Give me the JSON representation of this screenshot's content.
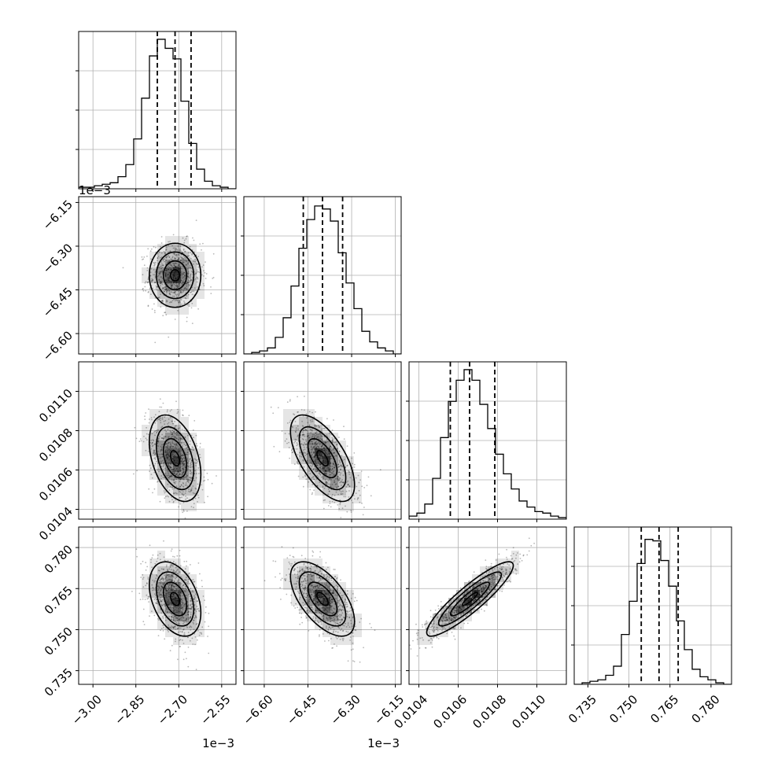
{
  "chart_data": {
    "type": "corner",
    "parameters": [
      {
        "index": 0,
        "range": [
          -3.05,
          -2.5
        ],
        "ticks": [
          -3.0,
          -2.85,
          -2.7,
          -2.55
        ],
        "tick_labels": [
          "−3.00",
          "−2.85",
          "−2.70",
          "−2.55"
        ],
        "offset_text": "1e−3",
        "quantiles": [
          -2.775,
          -2.713,
          -2.657
        ]
      },
      {
        "index": 1,
        "range": [
          -6.67,
          -6.13
        ],
        "ticks": [
          -6.6,
          -6.45,
          -6.3,
          -6.15
        ],
        "tick_labels": [
          "−6.60",
          "−6.45",
          "−6.30",
          "−6.15"
        ],
        "offset_text": "1e−3",
        "quantiles": [
          -6.466,
          -6.4,
          -6.331
        ]
      },
      {
        "index": 2,
        "range": [
          0.01035,
          0.01115
        ],
        "ticks": [
          0.0104,
          0.0106,
          0.0108,
          0.011
        ],
        "tick_labels": [
          "0.0104",
          "0.0106",
          "0.0108",
          "0.0110"
        ],
        "offset_text": "",
        "quantiles": [
          0.01056,
          0.010658,
          0.010786
        ]
      },
      {
        "index": 3,
        "range": [
          0.73,
          0.7875
        ],
        "ticks": [
          0.735,
          0.75,
          0.765,
          0.78
        ],
        "tick_labels": [
          "0.735",
          "0.750",
          "0.765",
          "0.780"
        ],
        "offset_text": "",
        "quantiles": [
          0.7545,
          0.761,
          0.768
        ]
      }
    ],
    "histograms": [
      [
        0.01,
        0.01,
        0.02,
        0.03,
        0.04,
        0.08,
        0.16,
        0.33,
        0.6,
        0.88,
        0.99,
        0.93,
        0.86,
        0.58,
        0.3,
        0.13,
        0.05,
        0.02,
        0.01,
        0.0
      ],
      [
        0.0,
        0.01,
        0.02,
        0.04,
        0.11,
        0.24,
        0.45,
        0.7,
        0.89,
        0.98,
        0.96,
        0.88,
        0.67,
        0.47,
        0.3,
        0.15,
        0.08,
        0.04,
        0.02,
        0.0
      ],
      [
        0.02,
        0.04,
        0.1,
        0.27,
        0.54,
        0.78,
        0.92,
        0.99,
        0.92,
        0.76,
        0.6,
        0.43,
        0.3,
        0.2,
        0.12,
        0.08,
        0.05,
        0.04,
        0.02,
        0.01
      ],
      [
        0.0,
        0.01,
        0.02,
        0.03,
        0.06,
        0.12,
        0.33,
        0.55,
        0.8,
        0.96,
        0.95,
        0.82,
        0.65,
        0.42,
        0.23,
        0.1,
        0.05,
        0.03,
        0.01,
        0.0
      ]
    ],
    "pairs": [
      {
        "i": 1,
        "j": 0,
        "mean": [
          -2.713,
          -6.4
        ],
        "sd": [
          0.045,
          0.055
        ],
        "rho": 0.0
      },
      {
        "i": 2,
        "j": 0,
        "mean": [
          -2.713,
          0.01066
        ],
        "sd": [
          0.045,
          0.00011
        ],
        "rho": -0.38
      },
      {
        "i": 2,
        "j": 1,
        "mean": [
          -6.4,
          0.01066
        ],
        "sd": [
          0.055,
          0.00011
        ],
        "rho": -0.62
      },
      {
        "i": 3,
        "j": 0,
        "mean": [
          -2.713,
          0.7612
        ],
        "sd": [
          0.045,
          0.0068
        ],
        "rho": -0.38
      },
      {
        "i": 3,
        "j": 1,
        "mean": [
          -6.4,
          0.7612
        ],
        "sd": [
          0.055,
          0.0068
        ],
        "rho": -0.6
      },
      {
        "i": 3,
        "j": 2,
        "mean": [
          0.01066,
          0.7612
        ],
        "sd": [
          0.00011,
          0.0068
        ],
        "rho": 0.9
      }
    ],
    "grid": true,
    "colors": {
      "line": "#000000",
      "grid": "#b0b0b0",
      "scatter": "#000000"
    }
  }
}
